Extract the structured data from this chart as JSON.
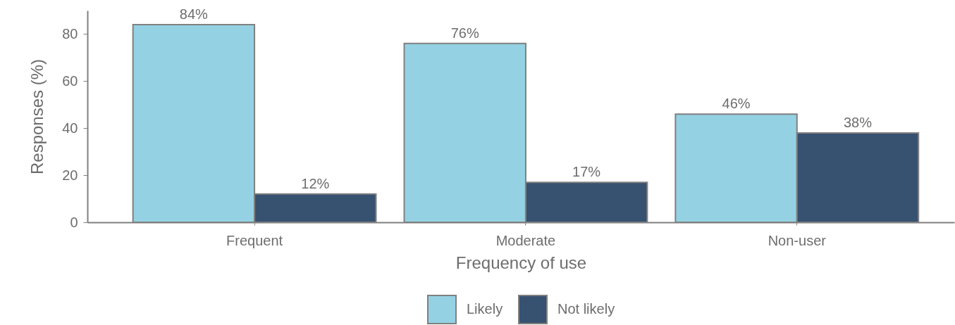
{
  "chart_data": {
    "type": "bar",
    "xlabel": "Frequency of use",
    "ylabel": "Responses (%)",
    "categories": [
      "Frequent",
      "Moderate",
      "Non-user"
    ],
    "series": [
      {
        "name": "Likely",
        "color": "#94d2e3",
        "values": [
          84,
          76,
          46
        ],
        "value_labels": [
          "84%",
          "76%",
          "46%"
        ]
      },
      {
        "name": "Not likely",
        "color": "#375170",
        "values": [
          12,
          17,
          38
        ],
        "value_labels": [
          "12%",
          "17%",
          "38%"
        ]
      }
    ],
    "ylim": [
      0,
      90
    ],
    "yticks": [
      0,
      20,
      40,
      60,
      80
    ],
    "legend": "bottom"
  }
}
